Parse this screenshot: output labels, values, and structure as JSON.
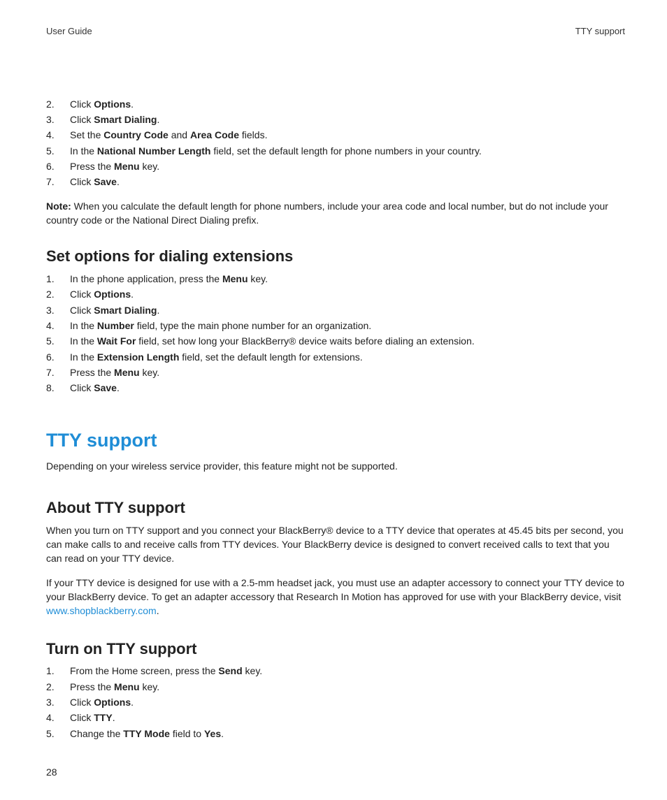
{
  "header": {
    "left": "User Guide",
    "right": "TTY support"
  },
  "colors": {
    "accent": "#1f8dd6",
    "text": "#222222",
    "background": "#ffffff"
  },
  "typography": {
    "body_size_pt": 10.5,
    "h2_size_pt": 17,
    "h1_size_pt": 20,
    "font_family": "Segoe UI / Helvetica Neue / Arial"
  },
  "first_list": {
    "start": 2,
    "items": [
      {
        "n": "2.",
        "segments": [
          {
            "t": "Click "
          },
          {
            "t": "Options",
            "b": true
          },
          {
            "t": "."
          }
        ]
      },
      {
        "n": "3.",
        "segments": [
          {
            "t": "Click "
          },
          {
            "t": "Smart Dialing",
            "b": true
          },
          {
            "t": "."
          }
        ]
      },
      {
        "n": "4.",
        "segments": [
          {
            "t": "Set the "
          },
          {
            "t": "Country Code",
            "b": true
          },
          {
            "t": " and "
          },
          {
            "t": "Area Code",
            "b": true
          },
          {
            "t": " fields."
          }
        ]
      },
      {
        "n": "5.",
        "segments": [
          {
            "t": "In the "
          },
          {
            "t": "National Number Length",
            "b": true
          },
          {
            "t": " field, set the default length for phone numbers in your country."
          }
        ]
      },
      {
        "n": "6.",
        "segments": [
          {
            "t": "Press the "
          },
          {
            "t": "Menu",
            "b": true
          },
          {
            "t": " key."
          }
        ]
      },
      {
        "n": "7.",
        "segments": [
          {
            "t": "Click "
          },
          {
            "t": "Save",
            "b": true
          },
          {
            "t": "."
          }
        ]
      }
    ]
  },
  "note": {
    "label": "Note:",
    "text": "  When you calculate the default length for phone numbers, include your area code and local number, but do not include your country code or the National Direct Dialing prefix."
  },
  "section_ext": {
    "title": "Set options for dialing extensions",
    "items": [
      {
        "n": "1.",
        "segments": [
          {
            "t": "In the phone application, press the "
          },
          {
            "t": "Menu",
            "b": true
          },
          {
            "t": " key."
          }
        ]
      },
      {
        "n": "2.",
        "segments": [
          {
            "t": "Click "
          },
          {
            "t": "Options",
            "b": true
          },
          {
            "t": "."
          }
        ]
      },
      {
        "n": "3.",
        "segments": [
          {
            "t": "Click "
          },
          {
            "t": "Smart Dialing",
            "b": true
          },
          {
            "t": "."
          }
        ]
      },
      {
        "n": "4.",
        "segments": [
          {
            "t": "In the "
          },
          {
            "t": "Number",
            "b": true
          },
          {
            "t": " field, type the main phone number for an organization."
          }
        ]
      },
      {
        "n": "5.",
        "segments": [
          {
            "t": "In the "
          },
          {
            "t": "Wait For",
            "b": true
          },
          {
            "t": " field, set how long your BlackBerry® device waits before dialing an extension."
          }
        ]
      },
      {
        "n": "6.",
        "segments": [
          {
            "t": "In the "
          },
          {
            "t": "Extension Length",
            "b": true
          },
          {
            "t": " field, set the default length for extensions."
          }
        ]
      },
      {
        "n": "7.",
        "segments": [
          {
            "t": "Press the "
          },
          {
            "t": "Menu",
            "b": true
          },
          {
            "t": " key."
          }
        ]
      },
      {
        "n": "8.",
        "segments": [
          {
            "t": "Click "
          },
          {
            "t": "Save",
            "b": true
          },
          {
            "t": "."
          }
        ]
      }
    ]
  },
  "chapter": {
    "title": "TTY support",
    "intro": "Depending on your wireless service provider, this feature might not be supported."
  },
  "section_about": {
    "title": "About TTY support",
    "para1": "When you turn on TTY support and you connect your BlackBerry® device to a TTY device that operates at 45.45 bits per second, you can make calls to and receive calls from TTY devices. Your BlackBerry device is designed to convert received calls to text that you can read on your TTY device.",
    "para2_pre": "If your TTY device is designed for use with a 2.5-mm headset jack, you must use an adapter accessory to connect your TTY device to your BlackBerry device. To get an adapter accessory that Research In Motion has approved for use with your BlackBerry device, visit ",
    "para2_link": "www.shopblackberry.com",
    "para2_post": "."
  },
  "section_turn_on": {
    "title": "Turn on TTY support",
    "items": [
      {
        "n": "1.",
        "segments": [
          {
            "t": "From the Home screen, press the "
          },
          {
            "t": "Send",
            "b": true
          },
          {
            "t": " key."
          }
        ]
      },
      {
        "n": "2.",
        "segments": [
          {
            "t": "Press the "
          },
          {
            "t": "Menu",
            "b": true
          },
          {
            "t": " key."
          }
        ]
      },
      {
        "n": "3.",
        "segments": [
          {
            "t": "Click "
          },
          {
            "t": "Options",
            "b": true
          },
          {
            "t": "."
          }
        ]
      },
      {
        "n": "4.",
        "segments": [
          {
            "t": "Click "
          },
          {
            "t": "TTY",
            "b": true
          },
          {
            "t": "."
          }
        ]
      },
      {
        "n": "5.",
        "segments": [
          {
            "t": "Change the "
          },
          {
            "t": "TTY Mode",
            "b": true
          },
          {
            "t": " field to "
          },
          {
            "t": "Yes",
            "b": true
          },
          {
            "t": "."
          }
        ]
      }
    ]
  },
  "page_number": "28"
}
